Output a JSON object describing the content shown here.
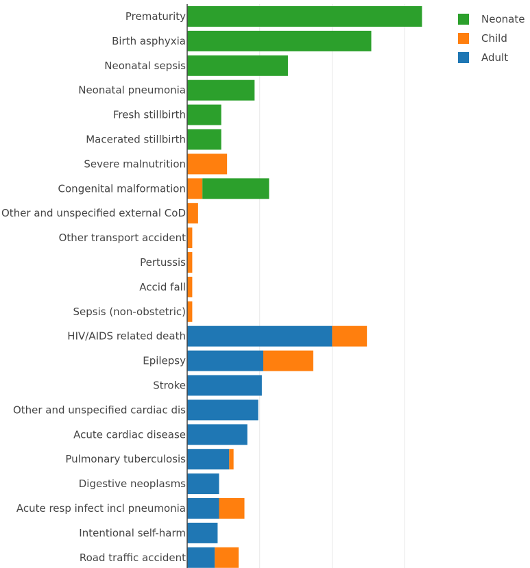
{
  "chart_data": {
    "type": "bar",
    "orientation": "horizontal",
    "stacked": true,
    "categories": [
      "Prematurity",
      "Birth asphyxia",
      "Neonatal sepsis",
      "Neonatal pneumonia",
      "Fresh stillbirth",
      "Macerated stillbirth",
      "Severe malnutrition",
      "Congenital malformation",
      "Other and unspecified external CoD",
      "Other transport accident",
      "Pertussis",
      "Accid fall",
      "Sepsis (non-obstetric)",
      "HIV/AIDS related death",
      "Epilepsy",
      "Stroke",
      "Other and unspecified cardiac dis",
      "Acute cardiac disease",
      "Pulmonary tuberculosis",
      "Digestive neoplasms",
      "Acute resp infect incl pneumonia",
      "Intentional self-harm",
      "Road traffic accident"
    ],
    "series": [
      {
        "name": "Adult",
        "color": "#1f77b4",
        "values": [
          0,
          0,
          0,
          0,
          0,
          0,
          0,
          0,
          0,
          0,
          0,
          0,
          0,
          100,
          52.5,
          51.5,
          49,
          41.5,
          29,
          22,
          22,
          21,
          19
        ]
      },
      {
        "name": "Child",
        "color": "#ff7f0e",
        "values": [
          0,
          0,
          0,
          0,
          0,
          0,
          27.5,
          10.5,
          7.5,
          3.5,
          3.5,
          3.5,
          3.5,
          24,
          34.5,
          0,
          0,
          0,
          3,
          0,
          17.5,
          0,
          16.5
        ]
      },
      {
        "name": "Neonate",
        "color": "#2ca02c",
        "values": [
          162,
          127,
          69.5,
          46.5,
          23.5,
          23.5,
          0,
          46,
          0,
          0,
          0,
          0,
          0,
          0,
          0,
          0,
          0,
          0,
          0,
          0,
          0,
          0,
          0
        ]
      }
    ],
    "xlim": [
      0,
      175
    ],
    "x_gridlines": [
      0,
      50,
      100,
      150
    ],
    "grid": true,
    "legend": {
      "position": "top-right",
      "entries": [
        "Neonate",
        "Child",
        "Adult"
      ],
      "colors": [
        "#2ca02c",
        "#ff7f0e",
        "#1f77b4"
      ]
    }
  }
}
